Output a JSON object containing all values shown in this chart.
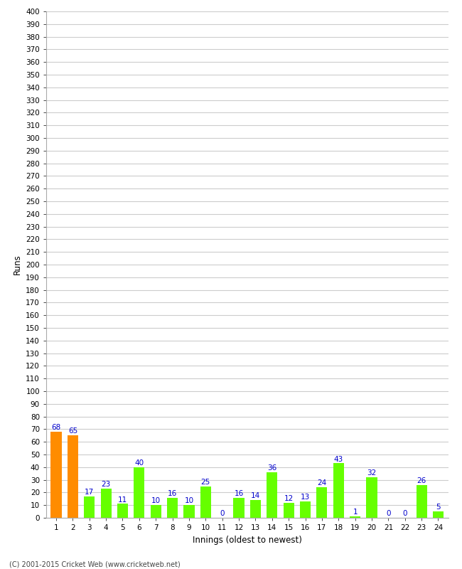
{
  "title": "",
  "xlabel": "Innings (oldest to newest)",
  "ylabel": "Runs",
  "values": [
    68,
    65,
    17,
    23,
    11,
    40,
    10,
    16,
    10,
    25,
    0,
    16,
    14,
    36,
    12,
    13,
    24,
    43,
    1,
    32,
    0,
    0,
    26,
    5
  ],
  "innings": [
    1,
    2,
    3,
    4,
    5,
    6,
    7,
    8,
    9,
    10,
    11,
    12,
    13,
    14,
    15,
    16,
    17,
    18,
    19,
    20,
    21,
    22,
    23,
    24
  ],
  "bar_colors": [
    "#ff8c00",
    "#ff8c00",
    "#66ff00",
    "#66ff00",
    "#66ff00",
    "#66ff00",
    "#66ff00",
    "#66ff00",
    "#66ff00",
    "#66ff00",
    "#66ff00",
    "#66ff00",
    "#66ff00",
    "#66ff00",
    "#66ff00",
    "#66ff00",
    "#66ff00",
    "#66ff00",
    "#66ff00",
    "#66ff00",
    "#66ff00",
    "#66ff00",
    "#66ff00",
    "#66ff00"
  ],
  "ylim": [
    0,
    400
  ],
  "yticks": [
    0,
    10,
    20,
    30,
    40,
    50,
    60,
    70,
    80,
    90,
    100,
    110,
    120,
    130,
    140,
    150,
    160,
    170,
    180,
    190,
    200,
    210,
    220,
    230,
    240,
    250,
    260,
    270,
    280,
    290,
    300,
    310,
    320,
    330,
    340,
    350,
    360,
    370,
    380,
    390,
    400
  ],
  "label_color": "#0000cc",
  "grid_color": "#cccccc",
  "bg_color": "#ffffff",
  "plot_bg_color": "#ffffff",
  "footer": "(C) 2001-2015 Cricket Web (www.cricketweb.net)",
  "label_fontsize": 7.5,
  "tick_fontsize": 7.5,
  "bar_width": 0.65
}
